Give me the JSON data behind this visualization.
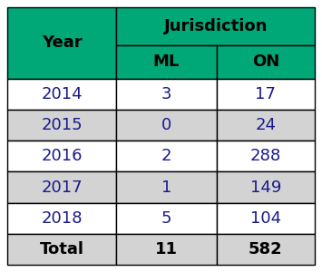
{
  "header_bg": "#00A878",
  "header_text_color": "#000000",
  "header_jurisdiction": "Jurisdiction",
  "col0_header": "Year",
  "col1_header": "ML",
  "col2_header": "ON",
  "rows": [
    [
      "2014",
      "3",
      "17"
    ],
    [
      "2015",
      "0",
      "24"
    ],
    [
      "2016",
      "2",
      "288"
    ],
    [
      "2017",
      "1",
      "149"
    ],
    [
      "2018",
      "5",
      "104"
    ],
    [
      "Total",
      "11",
      "582"
    ]
  ],
  "data_text_color": "#1a1a8c",
  "total_text_color": "#000000",
  "year_text_color": "#1a1a8c",
  "total_row_bg": "#D3D3D3",
  "alt_row_bg": "#D3D3D3",
  "white_row_bg": "#FFFFFF",
  "border_color": "#000000",
  "green": "#00A878",
  "fig_width": 3.55,
  "fig_height": 3.0,
  "dpi": 100
}
